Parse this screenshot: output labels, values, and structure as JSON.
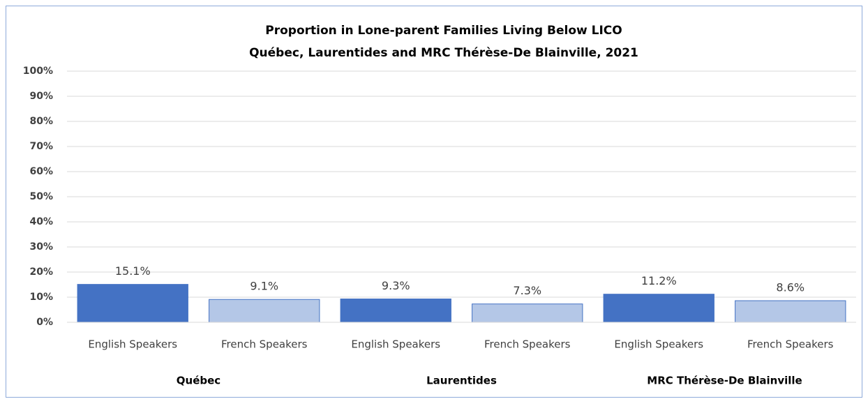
{
  "chart_data": {
    "type": "bar",
    "title": "Proportion in Lone-parent Families Living Below LICO",
    "subtitle": "Québec, Laurentides and MRC Thérèse-De Blainville,  2021",
    "categories": [
      "Québec",
      "Laurentides",
      "MRC Thérèse-De Blainville"
    ],
    "series": [
      {
        "name": "English Speakers",
        "color": "#4472c4",
        "values": [
          15.1,
          9.3,
          11.2
        ],
        "value_labels": [
          "15.1%",
          "9.3%",
          "11.2%"
        ]
      },
      {
        "name": "French Speakers",
        "color": "#b4c7e7",
        "values": [
          9.1,
          7.3,
          8.6
        ],
        "value_labels": [
          "9.1%",
          "7.3%",
          "8.6%"
        ]
      }
    ],
    "ylim": [
      0,
      100
    ],
    "yticks": [
      {
        "value": 0,
        "label": "0%"
      },
      {
        "value": 10,
        "label": "10%"
      },
      {
        "value": 20,
        "label": "20%"
      },
      {
        "value": 30,
        "label": "30%"
      },
      {
        "value": 40,
        "label": "40%"
      },
      {
        "value": 50,
        "label": "50%"
      },
      {
        "value": 60,
        "label": "60%"
      },
      {
        "value": 70,
        "label": "70%"
      },
      {
        "value": 80,
        "label": "80%"
      },
      {
        "value": 90,
        "label": "90%"
      },
      {
        "value": 100,
        "label": "100%"
      }
    ],
    "grid": true
  }
}
